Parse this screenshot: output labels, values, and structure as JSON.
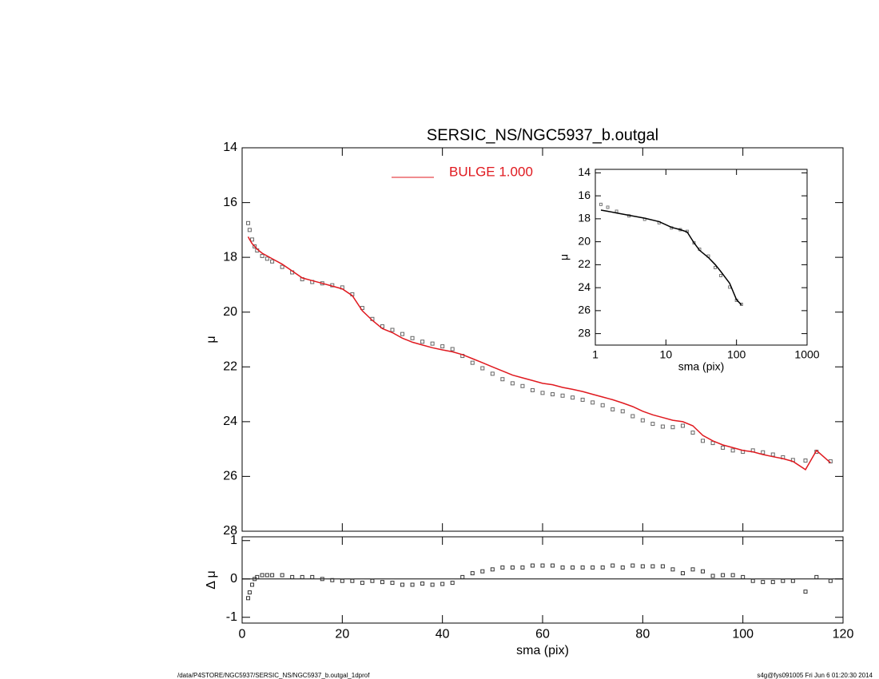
{
  "chart_data": [
    {
      "type": "scatter",
      "title": "SERSIC_NS/NGC5937_b.outgal",
      "y_label": "μ",
      "x": [
        1.2,
        1.5,
        2,
        2.5,
        3,
        4,
        5,
        6,
        8,
        10,
        12,
        14,
        16,
        18,
        20,
        22,
        24,
        26,
        28,
        30,
        32,
        34,
        36,
        38,
        40,
        42,
        44,
        46,
        48,
        50,
        52,
        54,
        56,
        58,
        60,
        62,
        64,
        66,
        68,
        70,
        72,
        74,
        76,
        78,
        80,
        82,
        84,
        86,
        88,
        90,
        92,
        94,
        96,
        98,
        100,
        102,
        104,
        106,
        108,
        110,
        112.5,
        114.7,
        117.5
      ],
      "series": [
        {
          "style": "points",
          "color": "#666666",
          "values": [
            16.75,
            17.0,
            17.35,
            17.6,
            17.75,
            17.95,
            18.05,
            18.15,
            18.35,
            18.55,
            18.8,
            18.9,
            18.95,
            19.02,
            19.1,
            19.35,
            19.85,
            20.25,
            20.52,
            20.65,
            20.8,
            20.95,
            21.08,
            21.15,
            21.25,
            21.35,
            21.6,
            21.85,
            22.05,
            22.25,
            22.45,
            22.6,
            22.7,
            22.85,
            22.95,
            23.0,
            23.05,
            23.12,
            23.2,
            23.3,
            23.4,
            23.55,
            23.62,
            23.8,
            23.95,
            24.08,
            24.18,
            24.2,
            24.15,
            24.4,
            24.7,
            24.78,
            24.95,
            25.05,
            25.1,
            25.05,
            25.12,
            25.2,
            25.3,
            25.4,
            25.42,
            25.1,
            25.45
          ]
        },
        {
          "name": "BULGE  1.000",
          "style": "line",
          "color": "#e0191f",
          "values": [
            17.25,
            17.35,
            17.5,
            17.6,
            17.7,
            17.85,
            17.95,
            18.05,
            18.25,
            18.5,
            18.75,
            18.85,
            18.95,
            19.05,
            19.15,
            19.4,
            19.95,
            20.3,
            20.6,
            20.75,
            20.95,
            21.1,
            21.2,
            21.3,
            21.38,
            21.45,
            21.55,
            21.7,
            21.85,
            22.0,
            22.15,
            22.3,
            22.4,
            22.5,
            22.6,
            22.65,
            22.75,
            22.82,
            22.9,
            23.0,
            23.1,
            23.2,
            23.32,
            23.45,
            23.62,
            23.75,
            23.85,
            23.95,
            24.0,
            24.15,
            24.5,
            24.7,
            24.85,
            24.95,
            25.05,
            25.1,
            25.2,
            25.28,
            25.35,
            25.45,
            25.75,
            25.05,
            25.5
          ]
        }
      ],
      "xlim": [
        0,
        120
      ],
      "xticks": [
        0,
        20,
        40,
        60,
        80,
        100,
        120
      ],
      "ylim": [
        28,
        14
      ],
      "yticks": [
        14,
        16,
        18,
        20,
        22,
        24,
        26,
        28
      ]
    },
    {
      "type": "scatter",
      "y_label": "Δ μ",
      "x_label": "sma (pix)",
      "x": [
        1.2,
        1.5,
        2,
        2.5,
        3,
        4,
        5,
        6,
        8,
        10,
        12,
        14,
        16,
        18,
        20,
        22,
        24,
        26,
        28,
        30,
        32,
        34,
        36,
        38,
        40,
        42,
        44,
        46,
        48,
        50,
        52,
        54,
        56,
        58,
        60,
        62,
        64,
        66,
        68,
        70,
        72,
        74,
        76,
        78,
        80,
        82,
        84,
        86,
        88,
        90,
        92,
        94,
        96,
        98,
        100,
        102,
        104,
        106,
        108,
        110,
        112.5,
        114.7,
        117.5
      ],
      "series": [
        {
          "style": "points",
          "color": "#333333",
          "values": [
            -0.5,
            -0.35,
            -0.15,
            0.0,
            0.05,
            0.1,
            0.1,
            0.1,
            0.1,
            0.05,
            0.05,
            0.05,
            0.0,
            -0.03,
            -0.05,
            -0.05,
            -0.1,
            -0.05,
            -0.08,
            -0.1,
            -0.15,
            -0.15,
            -0.12,
            -0.15,
            -0.13,
            -0.1,
            0.05,
            0.15,
            0.2,
            0.25,
            0.3,
            0.3,
            0.3,
            0.35,
            0.35,
            0.35,
            0.3,
            0.3,
            0.3,
            0.3,
            0.3,
            0.35,
            0.3,
            0.35,
            0.33,
            0.33,
            0.33,
            0.25,
            0.15,
            0.25,
            0.2,
            0.08,
            0.1,
            0.1,
            0.05,
            -0.05,
            -0.08,
            -0.08,
            -0.05,
            -0.05,
            -0.33,
            0.05,
            -0.05
          ]
        }
      ],
      "reference_line": 0,
      "xlim": [
        0,
        120
      ],
      "xticks": [
        0,
        20,
        40,
        60,
        80,
        100,
        120
      ],
      "ylim": [
        -1.15,
        1.1
      ],
      "yticks": [
        1,
        0,
        -1
      ]
    },
    {
      "type": "scatter",
      "y_label": "μ",
      "x_label": "sma (pix)",
      "xlog": true,
      "x": [
        1.2,
        1.5,
        2,
        3,
        5,
        8,
        12,
        16,
        20,
        25,
        30,
        40,
        50,
        60,
        80,
        100,
        117.5
      ],
      "series": [
        {
          "style": "points",
          "color": "#777777",
          "values": [
            16.75,
            17.0,
            17.35,
            17.75,
            18.05,
            18.35,
            18.8,
            18.95,
            19.1,
            20.1,
            20.65,
            21.25,
            22.25,
            22.95,
            23.95,
            25.1,
            25.45
          ]
        },
        {
          "style": "line",
          "color": "#000000",
          "values": [
            17.25,
            17.35,
            17.5,
            17.7,
            17.95,
            18.25,
            18.75,
            18.95,
            19.15,
            20.1,
            20.75,
            21.38,
            22.0,
            22.6,
            23.62,
            25.05,
            25.5
          ]
        }
      ],
      "xlim": [
        1,
        1000
      ],
      "xticks": [
        1,
        10,
        100,
        1000
      ],
      "ylim": [
        29,
        13.7
      ],
      "yticks": [
        14,
        16,
        18,
        20,
        22,
        24,
        26,
        28
      ]
    }
  ],
  "footer": {
    "left": "/data/P4STORE/NGC5937/SERSIC_NS/NGC5937_b.outgal_1dprof",
    "right": "s4g@fys091005  Fri Jun  6 01:20:30 2014"
  }
}
